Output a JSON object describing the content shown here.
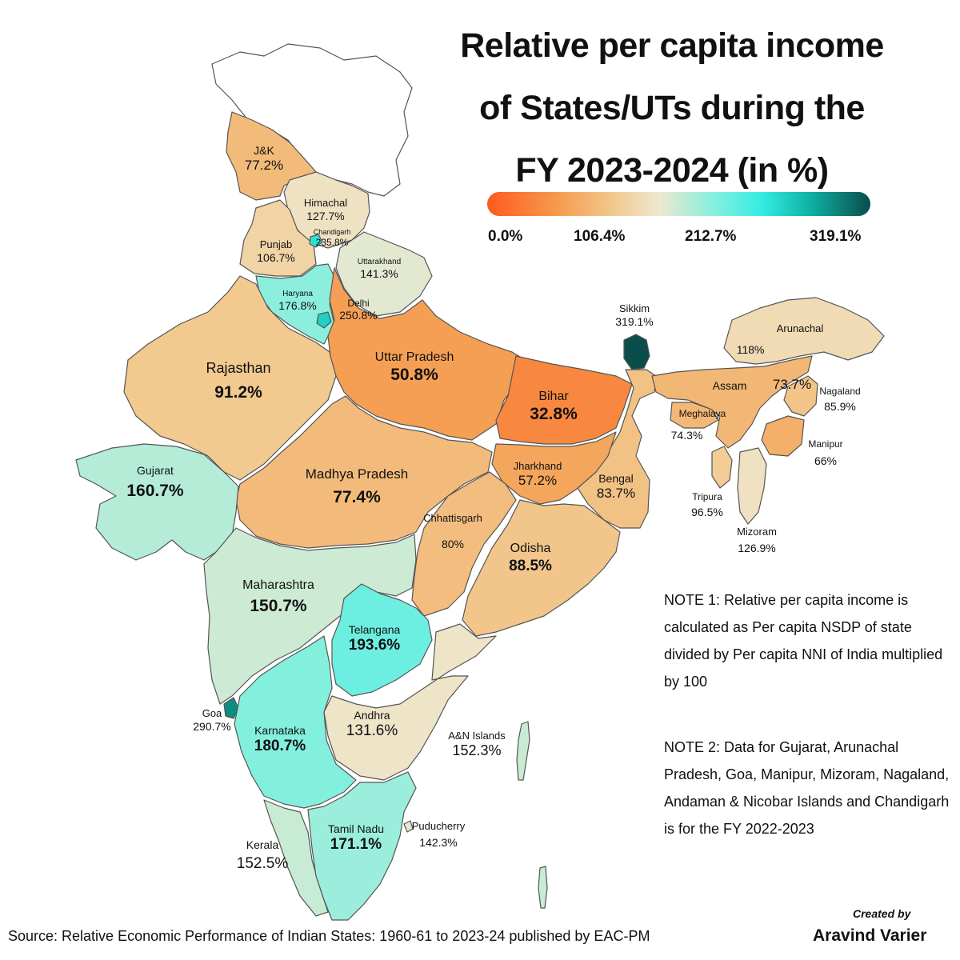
{
  "title": {
    "line1": "Relative per capita income",
    "line2": "of States/UTs during the",
    "line3": "FY 2023-2024 (in %)"
  },
  "legend": {
    "ticks": [
      "0.0%",
      "106.4%",
      "212.7%",
      "319.1%"
    ],
    "scale_min": 0.0,
    "scale_max": 319.1,
    "colors": [
      "#ff5a1f",
      "#f59a4c",
      "#f2c98f",
      "#eee8cf",
      "#7ff0df",
      "#33ebe2",
      "#0fb3a4",
      "#0a4d4b"
    ]
  },
  "regions": [
    {
      "name": "J&K",
      "value_label": "77.2%",
      "value": 77.2
    },
    {
      "name": "Himachal",
      "value_label": "127.7%",
      "value": 127.7
    },
    {
      "name": "Chandigarh",
      "value_label": "235.8%",
      "value": 235.8
    },
    {
      "name": "Punjab",
      "value_label": "106.7%",
      "value": 106.7
    },
    {
      "name": "Uttarakhand",
      "value_label": "141.3%",
      "value": 141.3
    },
    {
      "name": "Haryana",
      "value_label": "176.8%",
      "value": 176.8
    },
    {
      "name": "Delhi",
      "value_label": "250.8%",
      "value": 250.8
    },
    {
      "name": "Rajasthan",
      "value_label": "91.2%",
      "value": 91.2
    },
    {
      "name": "Uttar Pradesh",
      "value_label": "50.8%",
      "value": 50.8
    },
    {
      "name": "Bihar",
      "value_label": "32.8%",
      "value": 32.8
    },
    {
      "name": "Sikkim",
      "value_label": "319.1%",
      "value": 319.1
    },
    {
      "name": "Arunachal",
      "value_label": "118%",
      "value": 118
    },
    {
      "name": "Assam",
      "value_label": "73.7%",
      "value": 73.7
    },
    {
      "name": "Nagaland",
      "value_label": "85.9%",
      "value": 85.9
    },
    {
      "name": "Meghalaya",
      "value_label": "74.3%",
      "value": 74.3
    },
    {
      "name": "Manipur",
      "value_label": "66%",
      "value": 66
    },
    {
      "name": "Tripura",
      "value_label": "96.5%",
      "value": 96.5
    },
    {
      "name": "Mizoram",
      "value_label": "126.9%",
      "value": 126.9
    },
    {
      "name": "Gujarat",
      "value_label": "160.7%",
      "value": 160.7
    },
    {
      "name": "Madhya Pradesh",
      "value_label": "77.4%",
      "value": 77.4
    },
    {
      "name": "Jharkhand",
      "value_label": "57.2%",
      "value": 57.2
    },
    {
      "name": "Bengal",
      "value_label": "83.7%",
      "value": 83.7
    },
    {
      "name": "Chhattisgarh",
      "value_label": "80%",
      "value": 80
    },
    {
      "name": "Odisha",
      "value_label": "88.5%",
      "value": 88.5
    },
    {
      "name": "Maharashtra",
      "value_label": "150.7%",
      "value": 150.7
    },
    {
      "name": "Telangana",
      "value_label": "193.6%",
      "value": 193.6
    },
    {
      "name": "Goa",
      "value_label": "290.7%",
      "value": 290.7
    },
    {
      "name": "Karnataka",
      "value_label": "180.7%",
      "value": 180.7
    },
    {
      "name": "Andhra",
      "value_label": "131.6%",
      "value": 131.6
    },
    {
      "name": "A&N Islands",
      "value_label": "152.3%",
      "value": 152.3
    },
    {
      "name": "Tamil Nadu",
      "value_label": "171.1%",
      "value": 171.1
    },
    {
      "name": "Puducherry",
      "value_label": "142.3%",
      "value": 142.3
    },
    {
      "name": "Kerala",
      "value_label": "152.5%",
      "value": 152.5
    }
  ],
  "notes": {
    "note1": "NOTE 1: Relative per capita income is calculated as Per capita NSDP of state divided by Per capita NNI of India multiplied by 100",
    "note2": "NOTE 2: Data for Gujarat, Arunachal Pradesh, Goa, Manipur, Mizoram, Nagaland, Andaman & Nicobar Islands and Chandigarh is for the FY 2022-2023"
  },
  "source": "Source: Relative Economic Performance of Indian States: 1960-61 to 2023-24 published by EAC-PM",
  "credit": {
    "line1": "Created by",
    "line2": "Aravind Varier"
  }
}
